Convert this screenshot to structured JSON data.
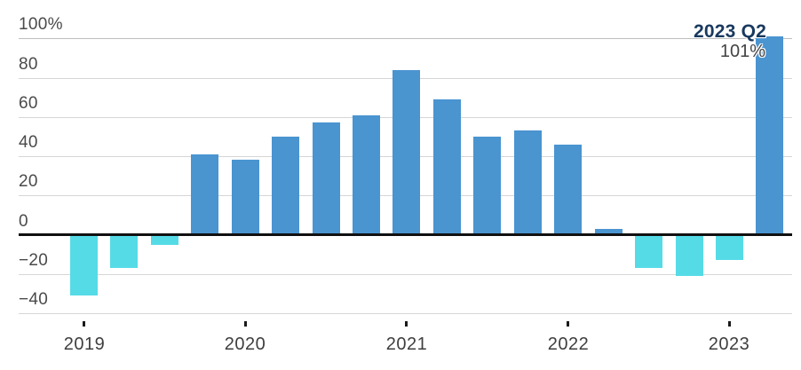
{
  "chart_data": {
    "type": "bar",
    "title": "",
    "unit": "%",
    "x": [
      "2019 Q1",
      "2019 Q2",
      "2019 Q3",
      "2019 Q4",
      "2020 Q1",
      "2020 Q2",
      "2020 Q3",
      "2020 Q4",
      "2021 Q1",
      "2021 Q2",
      "2021 Q3",
      "2021 Q4",
      "2022 Q1",
      "2022 Q2",
      "2022 Q3",
      "2022 Q4",
      "2023 Q1",
      "2023 Q2"
    ],
    "values": [
      -31,
      -17,
      -5,
      41,
      38,
      50,
      57,
      61,
      84,
      69,
      50,
      53,
      46,
      3,
      -17,
      -21,
      -13,
      101
    ],
    "year_tick_labels": [
      "2019",
      "2020",
      "2021",
      "2022",
      "2023"
    ],
    "year_tick_indices": [
      0,
      4,
      8,
      12,
      16
    ],
    "y_ticks": [
      {
        "label": "100%",
        "value": 100
      },
      {
        "label": "80",
        "value": 80
      },
      {
        "label": "60",
        "value": 60
      },
      {
        "label": "40",
        "value": 40
      },
      {
        "label": "20",
        "value": 20
      },
      {
        "label": "0",
        "value": 0
      },
      {
        "label": "−20",
        "value": -20
      },
      {
        "label": "−40",
        "value": -40
      }
    ],
    "ylim": [
      -40,
      101
    ],
    "grid": "horizontal",
    "legend": "none",
    "annotation": {
      "label": "2023 Q2",
      "value_label": "101%"
    },
    "colors": {
      "positive_bar": "#4a94d0",
      "negative_bar": "#55dbe6",
      "zero_line": "#111111",
      "gridline": "#d6d6d6",
      "top_gridline": "#bdbdbd",
      "axis_text": "#4a4a4c",
      "year_text": "#3e3e40",
      "annotation_label": "#19395e",
      "annotation_value": "#434345"
    }
  }
}
